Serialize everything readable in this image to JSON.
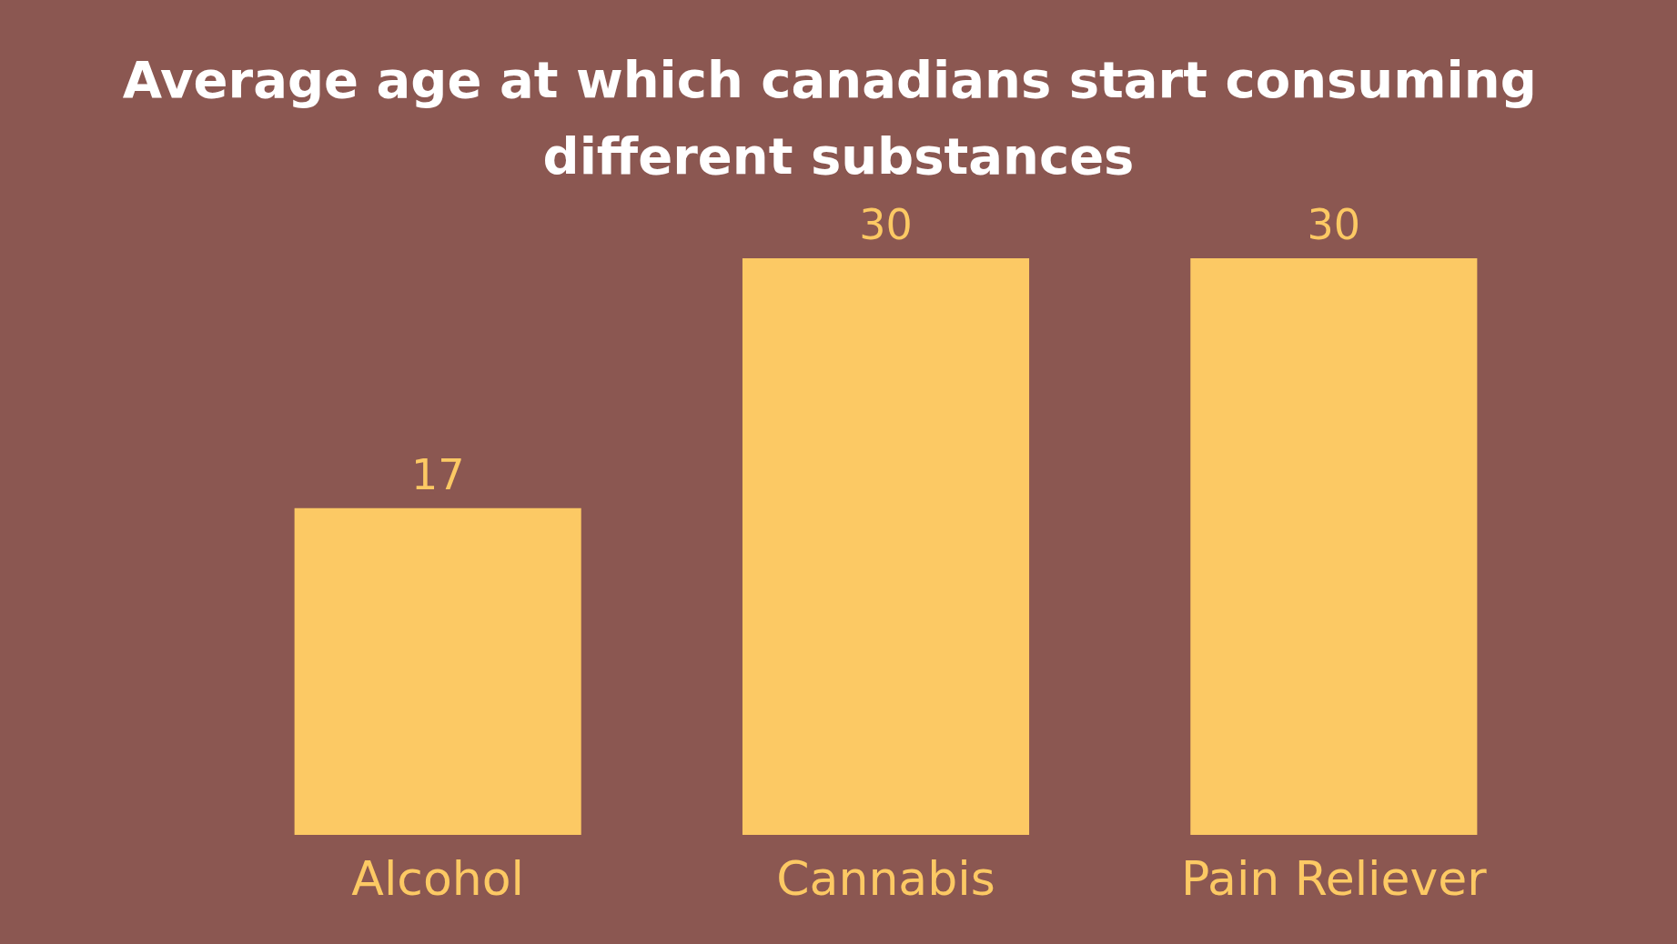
{
  "chart_data": {
    "type": "bar",
    "title": "Average age at which canadians start consuming different substances",
    "categories": [
      "Alcohol",
      "Cannabis",
      "Pain Reliever"
    ],
    "values": [
      17,
      30,
      30
    ],
    "color": "#fcc964",
    "data_labels": true
  }
}
